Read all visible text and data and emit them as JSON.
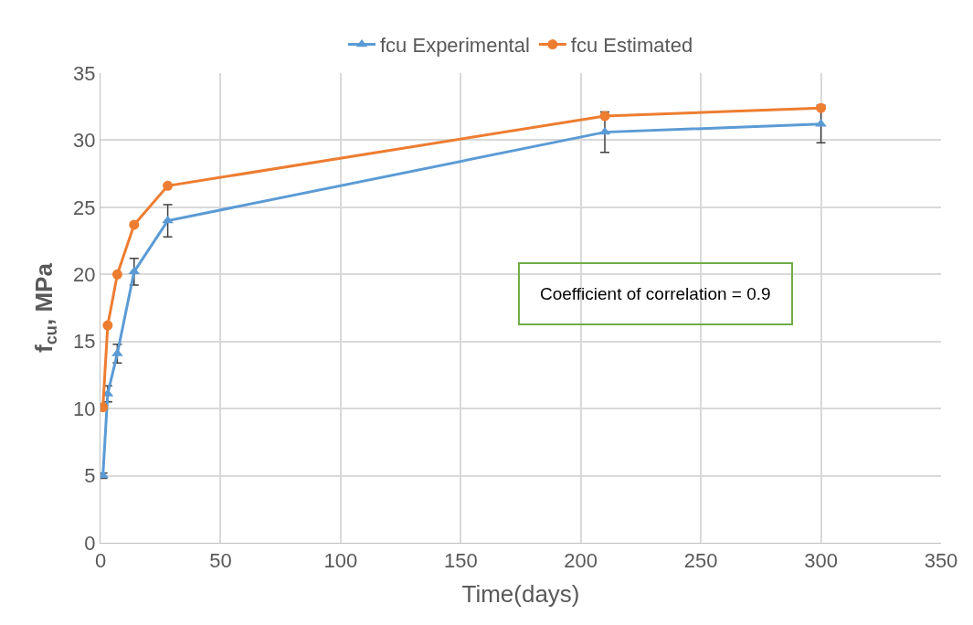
{
  "chart_data": {
    "type": "line",
    "xlabel": "Time(days)",
    "ylabel": "f$_{cu}$, MPa",
    "x": [
      1,
      3,
      7,
      14,
      28,
      210,
      300
    ],
    "series": [
      {
        "name": "fcu Experimental",
        "color": "#5b9bd5",
        "marker": "triangle",
        "values": [
          5.0,
          11.1,
          14.1,
          20.2,
          24.0,
          30.6,
          31.2
        ],
        "errors": [
          0.2,
          0.6,
          0.7,
          1.0,
          1.2,
          1.5,
          1.4
        ]
      },
      {
        "name": "fcu Estimated",
        "color": "#ed7d31",
        "marker": "circle",
        "values": [
          10.1,
          16.2,
          20.0,
          23.7,
          26.6,
          31.8,
          32.4
        ]
      }
    ],
    "xlim": [
      0,
      350
    ],
    "xticks": [
      0,
      50,
      100,
      150,
      200,
      250,
      300,
      350
    ],
    "ylim": [
      0,
      35
    ],
    "yticks": [
      0,
      5,
      10,
      15,
      20,
      25,
      30,
      35
    ],
    "grid": true,
    "legend": "top",
    "annotations": [
      "Coefficient of correlation = 0.9"
    ]
  }
}
